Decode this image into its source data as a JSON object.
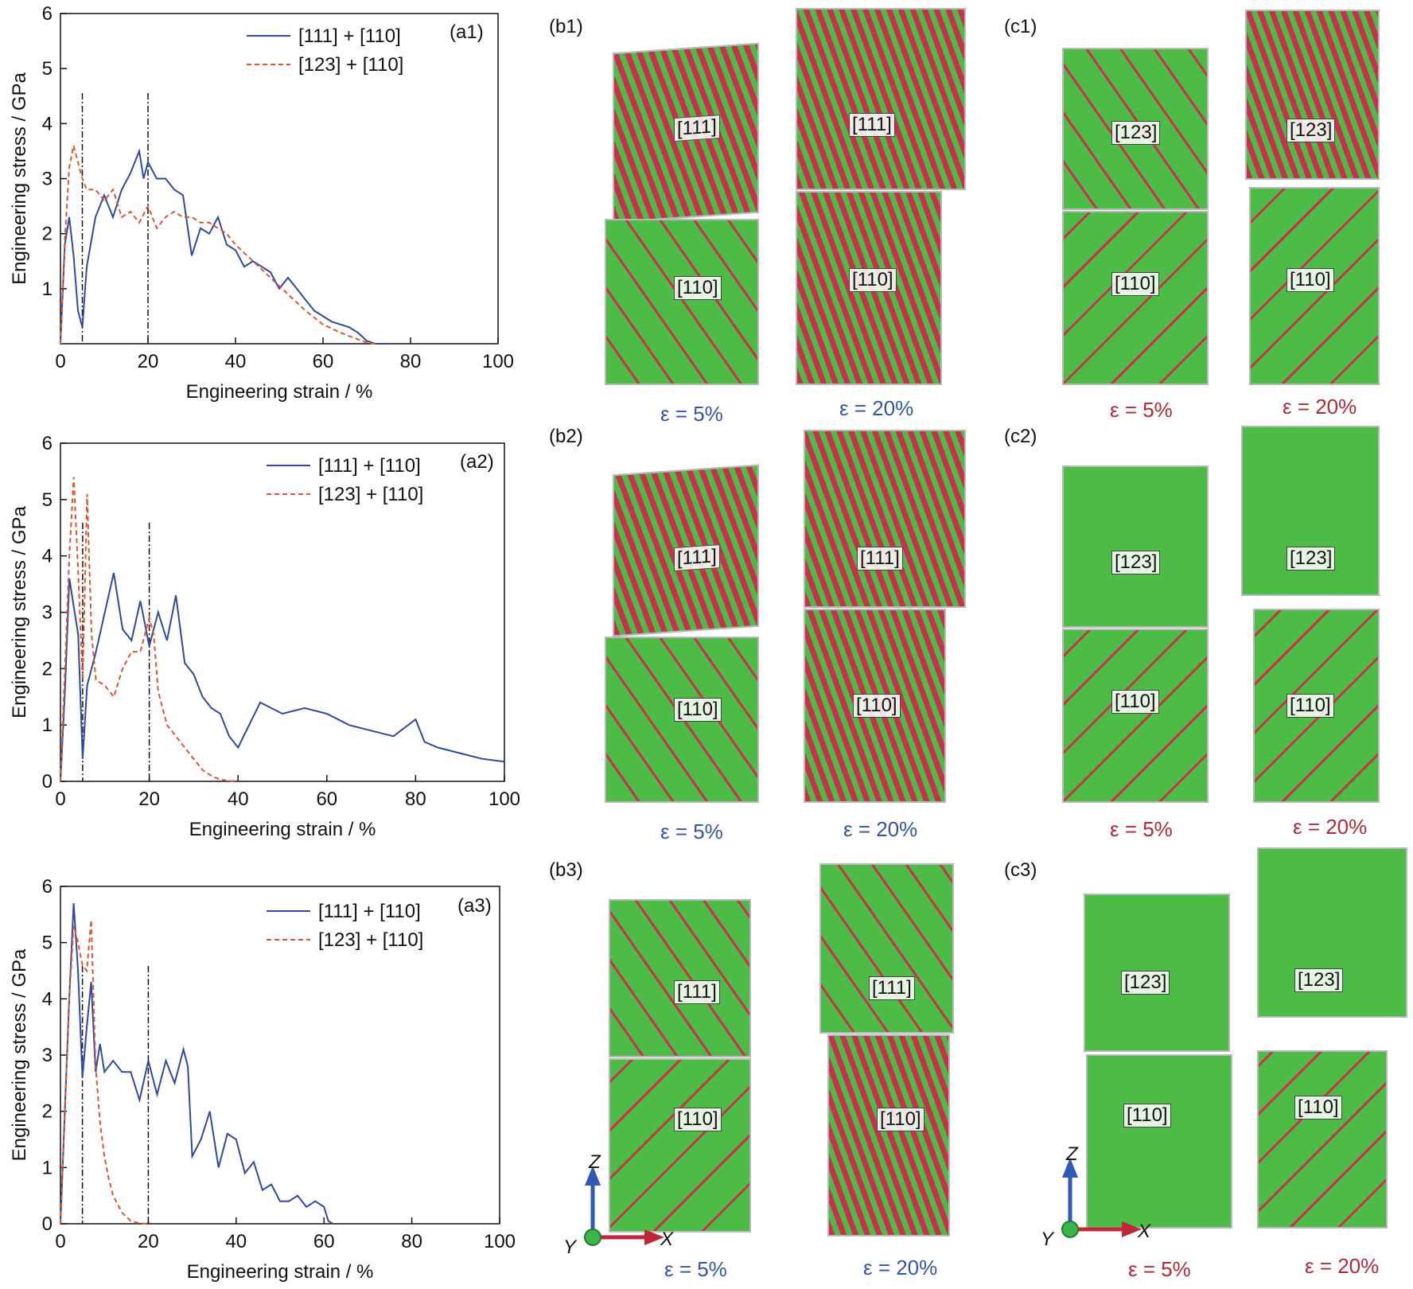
{
  "colors": {
    "blue": "#2c4aa0",
    "orange": "#e0552e",
    "green": "#4cbc47",
    "red": "#c8304e",
    "axisLabelBlue": "#3355a8",
    "axisLabelRed": "#b02a36"
  },
  "chart_data": [
    {
      "type": "line",
      "panel": "(a1)",
      "xlabel": "Engineering strain / %",
      "ylabel": "Engineering stress / GPa",
      "xlim": [
        0,
        100
      ],
      "ylim": [
        0,
        6
      ],
      "xticks": [
        "0",
        "20",
        "40",
        "60",
        "80",
        "100"
      ],
      "yticks": [
        "1",
        "2",
        "3",
        "4",
        "5",
        "6"
      ],
      "vlines": [
        5,
        20
      ],
      "series": [
        {
          "name": "[111] + [110]",
          "style": "solid",
          "x": [
            0,
            1,
            2,
            3,
            4,
            5,
            6,
            8,
            10,
            12,
            14,
            16,
            18,
            19,
            20,
            22,
            24,
            26,
            28,
            30,
            32,
            34,
            36,
            38,
            40,
            42,
            44,
            46,
            48,
            50,
            52,
            54,
            56,
            58,
            60,
            62,
            64,
            66,
            68,
            70,
            72,
            75
          ],
          "y": [
            0,
            1.8,
            2.3,
            1.6,
            0.6,
            0.3,
            1.4,
            2.3,
            2.7,
            2.3,
            2.8,
            3.1,
            3.5,
            3.0,
            3.3,
            3.0,
            3.0,
            2.8,
            2.7,
            1.6,
            2.1,
            2.0,
            2.3,
            1.8,
            1.7,
            1.4,
            1.5,
            1.4,
            1.3,
            1.0,
            1.2,
            1.0,
            0.8,
            0.6,
            0.5,
            0.4,
            0.35,
            0.3,
            0.2,
            0.05,
            0,
            0
          ]
        },
        {
          "name": "[123] + [110]",
          "style": "dashed",
          "x": [
            0,
            1,
            2,
            3,
            4,
            5,
            6,
            8,
            10,
            12,
            14,
            16,
            18,
            20,
            22,
            24,
            26,
            28,
            30,
            32,
            34,
            36,
            38,
            40,
            44,
            48,
            52,
            56,
            60,
            64,
            68,
            70,
            72
          ],
          "y": [
            0,
            1.9,
            3.2,
            3.6,
            3.3,
            3.0,
            2.8,
            2.8,
            2.6,
            2.8,
            2.3,
            2.4,
            2.2,
            2.5,
            2.1,
            2.3,
            2.4,
            2.3,
            2.3,
            2.2,
            2.2,
            2.1,
            2.0,
            1.8,
            1.5,
            1.2,
            0.9,
            0.6,
            0.35,
            0.2,
            0.08,
            0.02,
            0
          ]
        }
      ]
    },
    {
      "type": "line",
      "panel": "(a2)",
      "xlabel": "Engineering strain / %",
      "ylabel": "Engineering stress / GPa",
      "xlim": [
        0,
        100
      ],
      "ylim": [
        0,
        6
      ],
      "xticks": [
        "0",
        "20",
        "40",
        "60",
        "80",
        "100"
      ],
      "yticks": [
        "0",
        "1",
        "2",
        "3",
        "4",
        "5",
        "6"
      ],
      "vlines": [
        5,
        20
      ],
      "series": [
        {
          "name": "[111] + [110]",
          "style": "solid",
          "x": [
            0,
            1,
            2,
            3,
            4,
            5,
            6,
            8,
            10,
            12,
            14,
            16,
            18,
            20,
            22,
            24,
            26,
            28,
            30,
            32,
            34,
            36,
            38,
            40,
            45,
            50,
            55,
            60,
            65,
            70,
            75,
            80,
            82,
            85,
            90,
            95,
            100
          ],
          "y": [
            0,
            1.6,
            3.6,
            3.1,
            2.6,
            0.4,
            1.7,
            2.3,
            3.0,
            3.7,
            2.7,
            2.5,
            3.2,
            2.4,
            3.0,
            2.5,
            3.3,
            2.1,
            1.9,
            1.5,
            1.3,
            1.2,
            0.8,
            0.6,
            1.4,
            1.2,
            1.3,
            1.2,
            1.0,
            0.9,
            0.8,
            1.1,
            0.7,
            0.6,
            0.5,
            0.4,
            0.35
          ]
        },
        {
          "name": "[123] + [110]",
          "style": "dashed",
          "x": [
            0,
            1,
            2,
            3,
            4,
            5,
            6,
            7,
            8,
            10,
            12,
            14,
            16,
            18,
            20,
            21,
            22,
            24,
            26,
            28,
            30,
            32,
            34,
            36,
            38,
            40
          ],
          "y": [
            0,
            2.0,
            4.0,
            5.4,
            3.7,
            1.8,
            5.1,
            2.6,
            1.8,
            1.7,
            1.5,
            2.0,
            2.3,
            2.3,
            2.9,
            2.6,
            1.6,
            1.0,
            0.8,
            0.6,
            0.4,
            0.2,
            0.1,
            0.03,
            0.01,
            0
          ]
        }
      ]
    },
    {
      "type": "line",
      "panel": "(a3)",
      "xlabel": "Engineering strain / %",
      "ylabel": "Engineering stress / GPa",
      "xlim": [
        0,
        100
      ],
      "ylim": [
        0,
        6
      ],
      "xticks": [
        "0",
        "20",
        "40",
        "60",
        "80",
        "100"
      ],
      "yticks": [
        "0",
        "1",
        "2",
        "3",
        "4",
        "5",
        "6"
      ],
      "vlines": [
        5,
        20
      ],
      "series": [
        {
          "name": "[111] + [110]",
          "style": "solid",
          "x": [
            0,
            1,
            2,
            3,
            4,
            5,
            6,
            7,
            8,
            9,
            10,
            12,
            14,
            16,
            18,
            20,
            22,
            24,
            26,
            28,
            29,
            30,
            32,
            34,
            36,
            38,
            40,
            42,
            44,
            46,
            48,
            50,
            52,
            54,
            56,
            58,
            60,
            61,
            62
          ],
          "y": [
            0,
            2.0,
            4.0,
            5.7,
            4.5,
            2.6,
            3.5,
            4.3,
            2.7,
            3.2,
            2.7,
            2.9,
            2.7,
            2.7,
            2.2,
            2.9,
            2.3,
            2.9,
            2.5,
            3.1,
            2.8,
            1.2,
            1.5,
            2.0,
            1.0,
            1.6,
            1.5,
            0.9,
            1.1,
            0.6,
            0.7,
            0.4,
            0.4,
            0.5,
            0.3,
            0.4,
            0.3,
            0.05,
            0
          ]
        },
        {
          "name": "[123] + [110]",
          "style": "dashed",
          "x": [
            0,
            1,
            2,
            3,
            4,
            5,
            6,
            7,
            8,
            9,
            10,
            11,
            12,
            14,
            16,
            18,
            20
          ],
          "y": [
            0,
            2.0,
            4.0,
            5.3,
            5.0,
            4.6,
            4.5,
            5.4,
            2.8,
            1.8,
            1.2,
            0.8,
            0.5,
            0.2,
            0.05,
            0.01,
            0
          ]
        }
      ]
    }
  ],
  "panels": {
    "b1": "(b1)",
    "b2": "(b2)",
    "b3": "(b3)",
    "c1": "(c1)",
    "c2": "(c2)",
    "c3": "(c3)",
    "a1": "(a1)",
    "a2": "(a2)",
    "a3": "(a3)"
  },
  "strain_labels": {
    "five": "ε = 5%",
    "twenty": "ε = 20%"
  },
  "grain_labels": {
    "g111": "[111]",
    "g110": "[110]",
    "g123": "[123]"
  },
  "axes_icon": {
    "z": "Z",
    "x": "X",
    "y": "Y"
  }
}
